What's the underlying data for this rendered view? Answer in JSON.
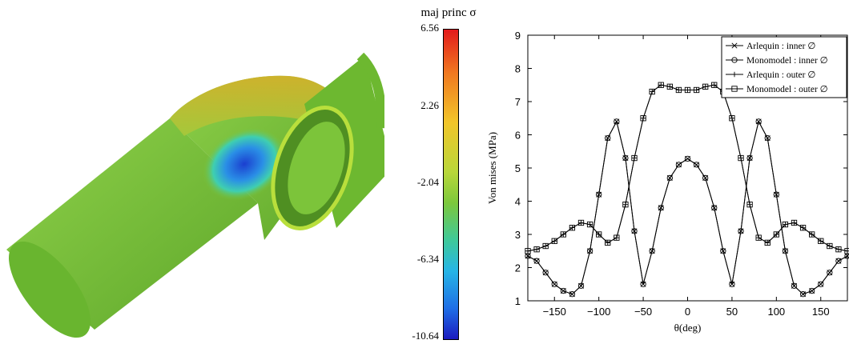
{
  "colorbar": {
    "title": "maj princ σ",
    "ticks": [
      "6.56",
      "2.26",
      "-2.04",
      "-6.34",
      "-10.64"
    ]
  },
  "colors": {
    "pipe_green": "#7cc43a",
    "stress_blue": "#1f5fe0",
    "stress_yellow": "#e8c830"
  },
  "chart_data": {
    "type": "line",
    "xlabel": "θ(deg)",
    "ylabel": "Von mises (MPa)",
    "xlim": [
      -180,
      180
    ],
    "ylim": [
      1,
      9
    ],
    "xticks": [
      -150,
      -100,
      -50,
      0,
      50,
      100,
      150
    ],
    "yticks": [
      1,
      2,
      3,
      4,
      5,
      6,
      7,
      8,
      9
    ],
    "grid": false,
    "legend_position": "top-right",
    "x": [
      -180,
      -170,
      -160,
      -150,
      -140,
      -130,
      -120,
      -110,
      -100,
      -90,
      -80,
      -70,
      -60,
      -50,
      -40,
      -30,
      -20,
      -10,
      0,
      10,
      20,
      30,
      40,
      50,
      60,
      70,
      80,
      90,
      100,
      110,
      120,
      130,
      140,
      150,
      160,
      170,
      180
    ],
    "series": [
      {
        "name": "Arlequin : inner ∅",
        "marker": "x",
        "values": [
          2.35,
          2.2,
          1.85,
          1.5,
          1.3,
          1.2,
          1.45,
          2.5,
          4.2,
          5.9,
          6.4,
          5.3,
          3.1,
          1.5,
          2.5,
          3.8,
          4.7,
          5.1,
          5.28,
          5.1,
          4.7,
          3.8,
          2.5,
          1.5,
          3.1,
          5.3,
          6.4,
          5.9,
          4.2,
          2.5,
          1.45,
          1.2,
          1.3,
          1.5,
          1.85,
          2.2,
          2.35
        ]
      },
      {
        "name": "Monomodel : inner ∅",
        "marker": "o",
        "values": [
          2.35,
          2.2,
          1.85,
          1.5,
          1.3,
          1.2,
          1.45,
          2.5,
          4.2,
          5.9,
          6.4,
          5.3,
          3.1,
          1.5,
          2.5,
          3.8,
          4.7,
          5.1,
          5.28,
          5.1,
          4.7,
          3.8,
          2.5,
          1.5,
          3.1,
          5.3,
          6.4,
          5.9,
          4.2,
          2.5,
          1.45,
          1.2,
          1.3,
          1.5,
          1.85,
          2.2,
          2.35
        ]
      },
      {
        "name": "Arlequin : outer  ∅",
        "marker": "+",
        "values": [
          2.5,
          2.55,
          2.65,
          2.8,
          3.0,
          3.2,
          3.35,
          3.3,
          3.0,
          2.75,
          2.9,
          3.9,
          5.3,
          6.5,
          7.3,
          7.5,
          7.45,
          7.35,
          7.35,
          7.35,
          7.45,
          7.5,
          7.3,
          6.5,
          5.3,
          3.9,
          2.9,
          2.75,
          3.0,
          3.3,
          3.35,
          3.2,
          3.0,
          2.8,
          2.65,
          2.55,
          2.5
        ]
      },
      {
        "name": "Monomodel : outer ∅",
        "marker": "s",
        "values": [
          2.5,
          2.55,
          2.65,
          2.8,
          3.0,
          3.2,
          3.35,
          3.3,
          3.0,
          2.75,
          2.9,
          3.9,
          5.3,
          6.5,
          7.3,
          7.5,
          7.45,
          7.35,
          7.35,
          7.35,
          7.45,
          7.5,
          7.3,
          6.5,
          5.3,
          3.9,
          2.9,
          2.75,
          3.0,
          3.3,
          3.35,
          3.2,
          3.0,
          2.8,
          2.65,
          2.55,
          2.5
        ]
      }
    ]
  }
}
